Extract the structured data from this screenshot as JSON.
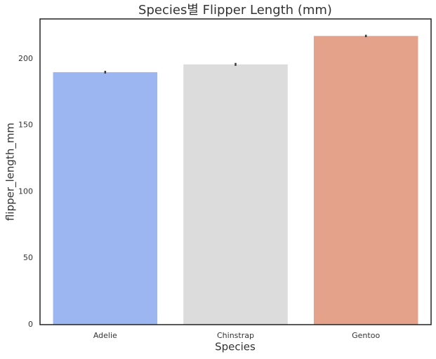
{
  "chart_data": {
    "type": "bar",
    "title": "Species별 Flipper Length (mm)",
    "x_label": "Species",
    "y_label": "flipper_length_mm",
    "categories": [
      "Adelie",
      "Chinstrap",
      "Gentoo"
    ],
    "values": [
      189.95,
      195.82,
      217.19
    ],
    "errors": [
      1.0,
      1.1,
      0.9
    ],
    "colors": [
      "#9bb6f1",
      "#dddcdc",
      "#e4a28a"
    ],
    "ylim": [
      0,
      230
    ],
    "yticks": [
      0,
      50,
      100,
      150,
      200
    ],
    "grid": false
  }
}
